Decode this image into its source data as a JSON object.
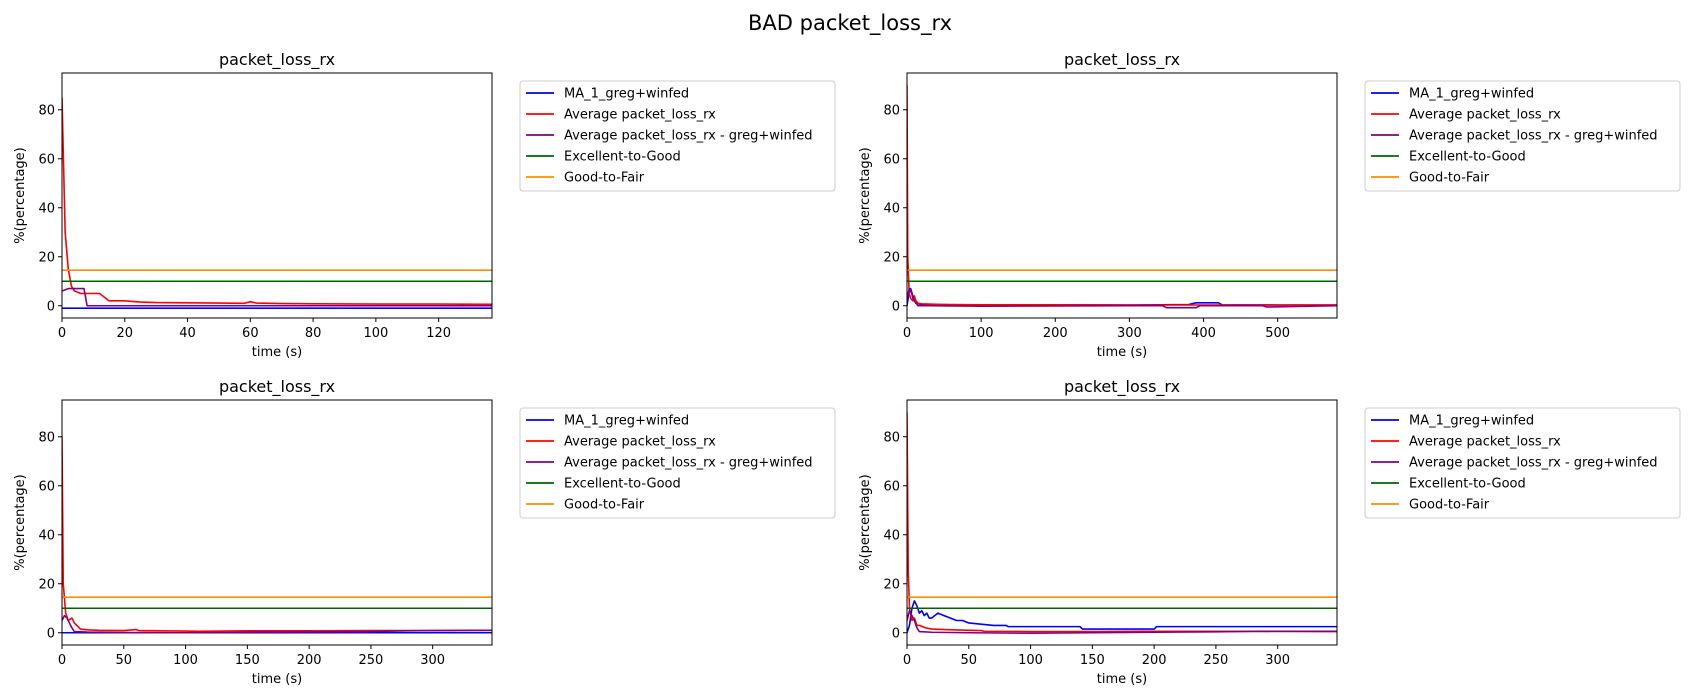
{
  "figure_title": "BAD packet_loss_rx",
  "colors": {
    "MA_1_greg+winfed": "#0000ff",
    "Average packet_loss_rx": "#ff0000",
    "Average packet_loss_rx - greg+winfed": "#800080",
    "Excellent-to-Good": "#006400",
    "Good-to-Fair": "#ff8c00"
  },
  "chart_data": [
    {
      "type": "line",
      "title": "packet_loss_rx",
      "xlabel": "time (s)",
      "ylabel": "%(percentage)",
      "xlim": [
        0,
        137
      ],
      "ylim": [
        -5,
        95
      ],
      "xticks": [
        0,
        20,
        40,
        60,
        80,
        100,
        120
      ],
      "yticks": [
        0,
        20,
        40,
        60,
        80
      ],
      "grid": false,
      "legend_position": "outside-right",
      "series": [
        {
          "name": "MA_1_greg+winfed",
          "x": [
            0,
            137
          ],
          "y": [
            -1,
            -1
          ]
        },
        {
          "name": "Average packet_loss_rx",
          "x": [
            0,
            1,
            2,
            3,
            4,
            6,
            10,
            12,
            13,
            14,
            15,
            20,
            25,
            30,
            40,
            50,
            58,
            60,
            62,
            70,
            80,
            100,
            120,
            137
          ],
          "y": [
            85,
            30,
            15,
            8,
            6,
            5,
            5,
            5,
            4,
            3,
            2,
            2,
            1.5,
            1.3,
            1.2,
            1.1,
            1.0,
            1.6,
            1.1,
            0.9,
            0.8,
            0.7,
            0.7,
            0.6
          ]
        },
        {
          "name": "Average packet_loss_rx - greg+winfed",
          "x": [
            0,
            2,
            5,
            6,
            7,
            8,
            15,
            30,
            60,
            100,
            137
          ],
          "y": [
            6,
            7,
            7,
            7,
            7,
            0,
            0,
            0,
            0,
            0,
            0
          ]
        },
        {
          "name": "Excellent-to-Good",
          "x": [
            0,
            137
          ],
          "y": [
            10,
            10
          ]
        },
        {
          "name": "Good-to-Fair",
          "x": [
            0,
            137
          ],
          "y": [
            14.5,
            14.5
          ]
        }
      ]
    },
    {
      "type": "line",
      "title": "packet_loss_rx",
      "xlabel": "time (s)",
      "ylabel": "%(percentage)",
      "xlim": [
        0,
        580
      ],
      "ylim": [
        -5,
        95
      ],
      "xticks": [
        0,
        100,
        200,
        300,
        400,
        500
      ],
      "yticks": [
        0,
        20,
        40,
        60,
        80
      ],
      "grid": false,
      "legend_position": "outside-right",
      "series": [
        {
          "name": "MA_1_greg+winfed",
          "x": [
            0,
            2,
            5,
            8,
            12,
            20,
            30,
            50,
            100,
            200,
            300,
            380,
            390,
            420,
            425,
            500,
            580
          ],
          "y": [
            0,
            4,
            7,
            3,
            1,
            0.5,
            0.3,
            0.2,
            0.3,
            0.4,
            0.3,
            0.5,
            1.2,
            1.2,
            0.4,
            0.3,
            0.3
          ]
        },
        {
          "name": "Average packet_loss_rx",
          "x": [
            0,
            1,
            3,
            5,
            8,
            10,
            12,
            15,
            20,
            40,
            60,
            100,
            200,
            300,
            400,
            500,
            580
          ],
          "y": [
            90,
            20,
            5,
            3,
            2,
            4,
            2,
            1,
            0.8,
            0.6,
            0.5,
            0.4,
            0.4,
            0.3,
            0.3,
            0.3,
            0.3
          ]
        },
        {
          "name": "Average packet_loss_rx - greg+winfed",
          "x": [
            0,
            3,
            6,
            10,
            15,
            30,
            100,
            200,
            300,
            345,
            350,
            390,
            395,
            480,
            485,
            580
          ],
          "y": [
            3,
            7,
            6,
            2,
            0,
            0,
            -0.2,
            -0.1,
            0,
            0,
            -0.8,
            -0.8,
            0,
            0,
            -0.5,
            0
          ]
        },
        {
          "name": "Excellent-to-Good",
          "x": [
            0,
            580
          ],
          "y": [
            10,
            10
          ]
        },
        {
          "name": "Good-to-Fair",
          "x": [
            0,
            580
          ],
          "y": [
            14.5,
            14.5
          ]
        }
      ]
    },
    {
      "type": "line",
      "title": "packet_loss_rx",
      "xlabel": "time (s)",
      "ylabel": "%(percentage)",
      "xlim": [
        0,
        348
      ],
      "ylim": [
        -5,
        95
      ],
      "xticks": [
        0,
        50,
        100,
        150,
        200,
        250,
        300
      ],
      "yticks": [
        0,
        20,
        40,
        60,
        80
      ],
      "grid": false,
      "legend_position": "outside-right",
      "series": [
        {
          "name": "MA_1_greg+winfed",
          "x": [
            0,
            348
          ],
          "y": [
            0,
            0
          ]
        },
        {
          "name": "Average packet_loss_rx",
          "x": [
            0,
            1,
            3,
            5,
            8,
            10,
            12,
            15,
            20,
            30,
            50,
            60,
            62,
            80,
            100,
            110,
            130,
            150,
            200,
            250,
            300,
            348
          ],
          "y": [
            80,
            20,
            8,
            5,
            6,
            4,
            3,
            1.5,
            1.2,
            1,
            0.9,
            1.3,
            0.9,
            0.8,
            0.7,
            0.6,
            0.7,
            0.8,
            0.8,
            0.9,
            0.9,
            1.0
          ]
        },
        {
          "name": "Average packet_loss_rx - greg+winfed",
          "x": [
            0,
            2,
            4,
            6,
            8,
            10,
            20,
            50,
            100,
            150,
            200,
            250,
            280,
            300,
            348
          ],
          "y": [
            5,
            7,
            6,
            4,
            2,
            0.5,
            0.3,
            0.1,
            0,
            0.2,
            0.3,
            0.5,
            0.8,
            0.9,
            1.0
          ]
        },
        {
          "name": "Excellent-to-Good",
          "x": [
            0,
            348
          ],
          "y": [
            10,
            10
          ]
        },
        {
          "name": "Good-to-Fair",
          "x": [
            0,
            348
          ],
          "y": [
            14.5,
            14.5
          ]
        }
      ]
    },
    {
      "type": "line",
      "title": "packet_loss_rx",
      "xlabel": "time (s)",
      "ylabel": "%(percentage)",
      "xlim": [
        0,
        348
      ],
      "ylim": [
        -5,
        95
      ],
      "xticks": [
        0,
        50,
        100,
        150,
        200,
        250,
        300
      ],
      "yticks": [
        0,
        20,
        40,
        60,
        80
      ],
      "grid": false,
      "legend_position": "outside-right",
      "series": [
        {
          "name": "MA_1_greg+winfed",
          "x": [
            0,
            2,
            4,
            6,
            8,
            10,
            12,
            14,
            16,
            18,
            20,
            25,
            30,
            35,
            40,
            45,
            50,
            60,
            70,
            80,
            82,
            100,
            120,
            140,
            142,
            160,
            180,
            200,
            202,
            250,
            300,
            348
          ],
          "y": [
            0,
            3,
            10,
            13,
            11,
            8,
            9,
            7,
            8,
            6,
            6,
            8,
            7,
            6,
            5,
            5,
            4,
            3.5,
            3,
            3,
            2.5,
            2.5,
            2.5,
            2.5,
            1.5,
            1.5,
            1.5,
            1.5,
            2.5,
            2.5,
            2.5,
            2.5
          ]
        },
        {
          "name": "Average packet_loss_rx",
          "x": [
            0,
            1,
            2,
            4,
            6,
            8,
            10,
            15,
            20,
            30,
            50,
            60,
            62,
            100,
            150,
            200,
            250,
            348
          ],
          "y": [
            90,
            25,
            10,
            5,
            6,
            3,
            3,
            2,
            1.5,
            1.3,
            1.0,
            0.9,
            0.6,
            0.5,
            0.5,
            0.6,
            0.6,
            0.5
          ]
        },
        {
          "name": "Average packet_loss_rx - greg+winfed",
          "x": [
            0,
            2,
            4,
            6,
            8,
            10,
            20,
            50,
            100,
            150,
            200,
            250,
            280,
            348
          ],
          "y": [
            5,
            9,
            7,
            5,
            2,
            0.5,
            0.2,
            0,
            -0.2,
            0,
            0.2,
            0.4,
            0.6,
            0.6
          ]
        },
        {
          "name": "Excellent-to-Good",
          "x": [
            0,
            348
          ],
          "y": [
            10,
            10
          ]
        },
        {
          "name": "Good-to-Fair",
          "x": [
            0,
            348
          ],
          "y": [
            14.5,
            14.5
          ]
        }
      ]
    }
  ]
}
